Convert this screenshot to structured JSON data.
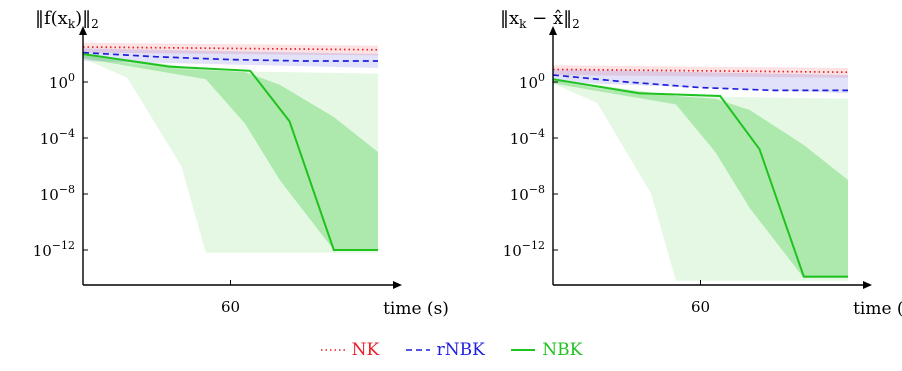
{
  "chart_data": [
    {
      "type": "line",
      "title": "‖f(x_k)‖₂",
      "title_parts": {
        "pre": "‖f(x",
        "sub": "k",
        "post": ")‖",
        "post_sub": "2"
      },
      "xlabel": "time (s)",
      "xlim": [
        0,
        120
      ],
      "ylog": true,
      "ylim_log10": [
        -14.5,
        3
      ],
      "xticks": [
        60
      ],
      "yticks_log10": [
        0,
        -4,
        -8,
        -12
      ],
      "grid": false,
      "series": [
        {
          "name": "NK",
          "color": "#e8202a",
          "style": "dotted",
          "x": [
            0,
            120
          ],
          "y_log10": [
            2.5,
            2.3
          ],
          "band": {
            "x": [
              0,
              120
            ],
            "upper_log10": [
              2.8,
              2.6
            ],
            "lower_log10": [
              2.1,
              1.9
            ]
          }
        },
        {
          "name": "rNBK",
          "color": "#1f1fdc",
          "style": "dashed",
          "x": [
            0,
            30,
            60,
            90,
            120
          ],
          "y_log10": [
            2.1,
            1.8,
            1.6,
            1.5,
            1.5
          ],
          "band": {
            "x": [
              0,
              120
            ],
            "upper_log10": [
              2.4,
              2.0
            ],
            "lower_log10": [
              1.5,
              1.0
            ]
          }
        },
        {
          "name": "NBK",
          "color": "#1fc21f",
          "style": "solid",
          "x": [
            0,
            35,
            68,
            84,
            102,
            120
          ],
          "y_log10": [
            2.0,
            1.1,
            0.8,
            -2.8,
            -12.0,
            -12.0
          ],
          "bands": [
            {
              "opacity": 0.12,
              "x": [
                0,
                18,
                40,
                50,
                120
              ],
              "upper_log10": [
                2.0,
                1.3,
                0.9,
                0.8,
                0.6
              ],
              "lower_log10": [
                1.7,
                0.3,
                -6.0,
                -12.2,
                -12.2
              ]
            },
            {
              "opacity": 0.28,
              "x": [
                0,
                50,
                66,
                80,
                102,
                120
              ],
              "upper_log10": [
                2.0,
                0.9,
                0.7,
                -0.2,
                -2.5,
                -5.0
              ],
              "lower_log10": [
                1.7,
                0.2,
                -3.0,
                -7.0,
                -12.0,
                -12.0
              ]
            }
          ]
        }
      ]
    },
    {
      "type": "line",
      "title": "‖x_k − x̂‖₂",
      "title_parts": {
        "pre": "‖x",
        "sub": "k",
        "post": " − x̂‖",
        "post_sub": "2"
      },
      "xlabel": "time (s)",
      "xlim": [
        0,
        120
      ],
      "ylog": true,
      "ylim_log10": [
        -14.5,
        3
      ],
      "xticks": [
        60
      ],
      "yticks_log10": [
        0,
        -4,
        -8,
        -12
      ],
      "grid": false,
      "series": [
        {
          "name": "NK",
          "color": "#e8202a",
          "style": "dotted",
          "x": [
            0,
            120
          ],
          "y_log10": [
            0.9,
            0.7
          ],
          "band": {
            "x": [
              0,
              120
            ],
            "upper_log10": [
              1.2,
              1.0
            ],
            "lower_log10": [
              0.5,
              0.3
            ]
          }
        },
        {
          "name": "rNBK",
          "color": "#1f1fdc",
          "style": "dashed",
          "x": [
            0,
            30,
            60,
            90,
            120
          ],
          "y_log10": [
            0.5,
            0.0,
            -0.4,
            -0.6,
            -0.6
          ],
          "band": {
            "x": [
              0,
              120
            ],
            "upper_log10": [
              0.9,
              0.5
            ],
            "lower_log10": [
              0.0,
              -0.8
            ]
          }
        },
        {
          "name": "NBK",
          "color": "#1fc21f",
          "style": "solid",
          "x": [
            0,
            35,
            68,
            84,
            102,
            120
          ],
          "y_log10": [
            0.2,
            -0.8,
            -1.0,
            -4.8,
            -13.9,
            -13.9
          ],
          "bands": [
            {
              "opacity": 0.12,
              "x": [
                0,
                18,
                40,
                50,
                120
              ],
              "upper_log10": [
                0.2,
                -0.5,
                -0.9,
                -1.0,
                -1.2
              ],
              "lower_log10": [
                -0.1,
                -1.5,
                -8.0,
                -14.2,
                -14.2
              ]
            },
            {
              "opacity": 0.28,
              "x": [
                0,
                50,
                66,
                80,
                102,
                120
              ],
              "upper_log10": [
                0.2,
                -1.0,
                -1.2,
                -2.0,
                -4.5,
                -7.0
              ],
              "lower_log10": [
                -0.1,
                -1.6,
                -5.0,
                -9.0,
                -14.0,
                -14.0
              ]
            }
          ]
        }
      ]
    }
  ],
  "legend": [
    {
      "label": "NK",
      "color": "#e8202a",
      "style": "dotted"
    },
    {
      "label": "rNBK",
      "color": "#1f1fdc",
      "style": "dashed"
    },
    {
      "label": "NBK",
      "color": "#1fc21f",
      "style": "solid"
    }
  ]
}
